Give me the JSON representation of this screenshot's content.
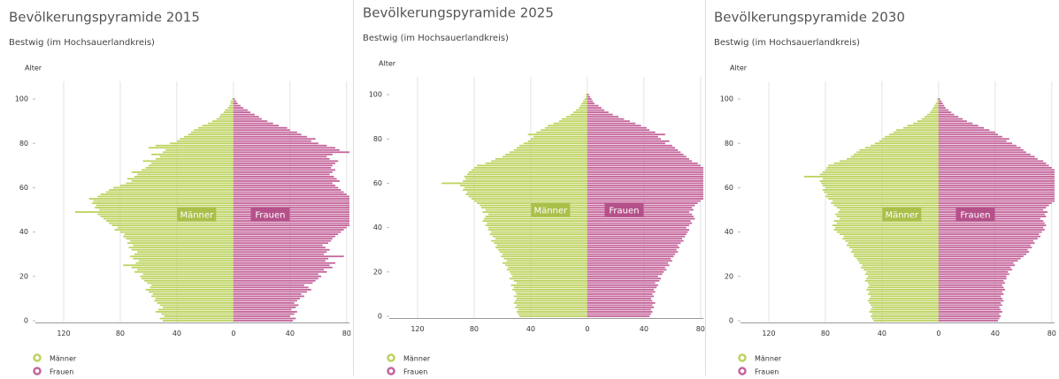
{
  "chart_data": [
    {
      "type": "bar",
      "title": "Bevölkerungspyramide 2015",
      "subtitle": "Bestwig (im Hochsauerlandkreis)",
      "y_label": "Alter",
      "categories": [
        0,
        1,
        2,
        3,
        4,
        5,
        6,
        7,
        8,
        9,
        10,
        11,
        12,
        13,
        14,
        15,
        16,
        17,
        18,
        19,
        20,
        21,
        22,
        23,
        24,
        25,
        26,
        27,
        28,
        29,
        30,
        31,
        32,
        33,
        34,
        35,
        36,
        37,
        38,
        39,
        40,
        41,
        42,
        43,
        44,
        45,
        46,
        47,
        48,
        49,
        50,
        51,
        52,
        53,
        54,
        55,
        56,
        57,
        58,
        59,
        60,
        61,
        62,
        63,
        64,
        65,
        66,
        67,
        68,
        69,
        70,
        71,
        72,
        73,
        74,
        75,
        76,
        77,
        78,
        79,
        80,
        81,
        82,
        83,
        84,
        85,
        86,
        87,
        88,
        89,
        90,
        91,
        92,
        93,
        94,
        95,
        96,
        97,
        98,
        99,
        100
      ],
      "series": [
        {
          "name": "Männer",
          "color": "#bcd35f",
          "values": [
            -50,
            -52,
            -49,
            -51,
            -55,
            -53,
            -50,
            -52,
            -54,
            -56,
            -55,
            -58,
            -57,
            -60,
            -62,
            -59,
            -58,
            -61,
            -63,
            -65,
            -66,
            -64,
            -70,
            -68,
            -72,
            -78,
            -69,
            -67,
            -71,
            -73,
            -70,
            -68,
            -72,
            -74,
            -71,
            -75,
            -73,
            -76,
            -78,
            -77,
            -80,
            -84,
            -82,
            -86,
            -88,
            -90,
            -92,
            -94,
            -96,
            -112,
            -95,
            -98,
            -97,
            -100,
            -99,
            -102,
            -96,
            -94,
            -90,
            -88,
            -85,
            -80,
            -76,
            -72,
            -75,
            -70,
            -68,
            -72,
            -65,
            -62,
            -60,
            -58,
            -64,
            -55,
            -52,
            -58,
            -50,
            -48,
            -60,
            -55,
            -45,
            -40,
            -38,
            -35,
            -32,
            -30,
            -28,
            -25,
            -22,
            -18,
            -15,
            -12,
            -10,
            -9,
            -7,
            -6,
            -4,
            -3,
            -2,
            -2,
            -1
          ]
        },
        {
          "name": "Frauen",
          "color": "#c4649a",
          "values": [
            42,
            44,
            40,
            43,
            45,
            41,
            44,
            46,
            43,
            45,
            47,
            50,
            48,
            52,
            55,
            53,
            50,
            56,
            58,
            60,
            62,
            60,
            66,
            64,
            70,
            68,
            72,
            65,
            67,
            78,
            64,
            66,
            68,
            65,
            63,
            67,
            69,
            70,
            72,
            74,
            76,
            78,
            80,
            82,
            84,
            85,
            83,
            86,
            84,
            85,
            85,
            84,
            86,
            85,
            83,
            84,
            82,
            80,
            78,
            76,
            74,
            72,
            70,
            75,
            73,
            71,
            68,
            70,
            72,
            69,
            70,
            72,
            74,
            68,
            66,
            70,
            84,
            75,
            72,
            66,
            60,
            55,
            58,
            52,
            48,
            45,
            40,
            38,
            32,
            28,
            24,
            20,
            18,
            15,
            12,
            10,
            7,
            5,
            3,
            2,
            1
          ]
        }
      ],
      "xlim": [
        -140,
        82
      ],
      "xticks": [
        {
          "value": -120,
          "label": "120"
        },
        {
          "value": -80,
          "label": "80"
        },
        {
          "value": -40,
          "label": "40"
        },
        0,
        40,
        80
      ],
      "ylim": [
        -1,
        108
      ],
      "yticks": [
        0,
        20,
        40,
        60,
        80,
        100
      ],
      "grid": true
    },
    {
      "type": "bar",
      "title": "Bevölkerungspyramide 2025",
      "subtitle": "Bestwig (im Hochsauerlandkreis)",
      "y_label": "Alter",
      "categories": [
        0,
        1,
        2,
        3,
        4,
        5,
        6,
        7,
        8,
        9,
        10,
        11,
        12,
        13,
        14,
        15,
        16,
        17,
        18,
        19,
        20,
        21,
        22,
        23,
        24,
        25,
        26,
        27,
        28,
        29,
        30,
        31,
        32,
        33,
        34,
        35,
        36,
        37,
        38,
        39,
        40,
        41,
        42,
        43,
        44,
        45,
        46,
        47,
        48,
        49,
        50,
        51,
        52,
        53,
        54,
        55,
        56,
        57,
        58,
        59,
        60,
        61,
        62,
        63,
        64,
        65,
        66,
        67,
        68,
        69,
        70,
        71,
        72,
        73,
        74,
        75,
        76,
        77,
        78,
        79,
        80,
        81,
        82,
        83,
        84,
        85,
        86,
        87,
        88,
        89,
        90,
        91,
        92,
        93,
        94,
        95,
        96,
        97,
        98,
        99,
        100
      ],
      "series": [
        {
          "name": "Männer",
          "color": "#bcd35f",
          "values": [
            -48,
            -49,
            -50,
            -49,
            -51,
            -50,
            -52,
            -51,
            -50,
            -52,
            -50,
            -51,
            -53,
            -52,
            -54,
            -50,
            -52,
            -55,
            -53,
            -54,
            -55,
            -57,
            -56,
            -58,
            -60,
            -57,
            -59,
            -61,
            -60,
            -62,
            -63,
            -65,
            -64,
            -66,
            -68,
            -65,
            -67,
            -69,
            -68,
            -70,
            -70,
            -72,
            -71,
            -74,
            -73,
            -72,
            -70,
            -74,
            -72,
            -75,
            -76,
            -78,
            -80,
            -82,
            -84,
            -86,
            -85,
            -88,
            -87,
            -90,
            -103,
            -88,
            -86,
            -87,
            -85,
            -84,
            -82,
            -80,
            -78,
            -72,
            -68,
            -65,
            -60,
            -58,
            -55,
            -52,
            -50,
            -48,
            -45,
            -42,
            -40,
            -38,
            -42,
            -36,
            -33,
            -30,
            -28,
            -24,
            -20,
            -18,
            -15,
            -12,
            -10,
            -8,
            -6,
            -5,
            -4,
            -3,
            -2,
            -1,
            -1
          ]
        },
        {
          "name": "Frauen",
          "color": "#c4649a",
          "values": [
            44,
            45,
            46,
            45,
            47,
            46,
            48,
            46,
            45,
            47,
            46,
            48,
            47,
            49,
            50,
            48,
            51,
            52,
            50,
            53,
            54,
            56,
            55,
            58,
            57,
            60,
            59,
            61,
            62,
            64,
            63,
            65,
            64,
            66,
            68,
            67,
            69,
            70,
            71,
            72,
            70,
            72,
            74,
            73,
            76,
            75,
            74,
            72,
            75,
            74,
            76,
            78,
            80,
            82,
            84,
            83,
            85,
            84,
            84,
            84,
            84,
            84,
            84,
            84,
            84,
            84,
            84,
            82,
            80,
            78,
            74,
            72,
            70,
            68,
            66,
            64,
            62,
            60,
            55,
            58,
            52,
            50,
            55,
            48,
            44,
            42,
            38,
            34,
            30,
            26,
            22,
            18,
            15,
            12,
            10,
            8,
            5,
            4,
            3,
            2,
            1
          ]
        }
      ],
      "xlim": [
        -140,
        82
      ],
      "xticks": [
        {
          "value": -120,
          "label": "120"
        },
        {
          "value": -80,
          "label": "80"
        },
        {
          "value": -40,
          "label": "40"
        },
        0,
        40,
        80
      ],
      "ylim": [
        -1,
        108
      ],
      "yticks": [
        0,
        20,
        40,
        60,
        80,
        100
      ],
      "grid": true
    },
    {
      "type": "bar",
      "title": "Bevölkerungspyramide 2030",
      "subtitle": "Bestwig (im Hochsauerlandkreis)",
      "y_label": "Alter",
      "categories": [
        0,
        1,
        2,
        3,
        4,
        5,
        6,
        7,
        8,
        9,
        10,
        11,
        12,
        13,
        14,
        15,
        16,
        17,
        18,
        19,
        20,
        21,
        22,
        23,
        24,
        25,
        26,
        27,
        28,
        29,
        30,
        31,
        32,
        33,
        34,
        35,
        36,
        37,
        38,
        39,
        40,
        41,
        42,
        43,
        44,
        45,
        46,
        47,
        48,
        49,
        50,
        51,
        52,
        53,
        54,
        55,
        56,
        57,
        58,
        59,
        60,
        61,
        62,
        63,
        64,
        65,
        66,
        67,
        68,
        69,
        70,
        71,
        72,
        73,
        74,
        75,
        76,
        77,
        78,
        79,
        80,
        81,
        82,
        83,
        84,
        85,
        86,
        87,
        88,
        89,
        90,
        91,
        92,
        93,
        94,
        95,
        96,
        97,
        98,
        99,
        100
      ],
      "series": [
        {
          "name": "Männer",
          "color": "#bcd35f",
          "values": [
            -46,
            -47,
            -48,
            -47,
            -49,
            -48,
            -47,
            -48,
            -49,
            -50,
            -49,
            -48,
            -50,
            -49,
            -51,
            -50,
            -49,
            -50,
            -52,
            -51,
            -50,
            -52,
            -51,
            -53,
            -55,
            -54,
            -56,
            -57,
            -58,
            -60,
            -60,
            -62,
            -61,
            -63,
            -65,
            -64,
            -66,
            -68,
            -67,
            -70,
            -72,
            -74,
            -73,
            -75,
            -72,
            -74,
            -70,
            -72,
            -73,
            -71,
            -70,
            -72,
            -74,
            -76,
            -75,
            -78,
            -80,
            -79,
            -81,
            -82,
            -80,
            -82,
            -83,
            -84,
            -82,
            -95,
            -84,
            -82,
            -80,
            -79,
            -78,
            -74,
            -70,
            -65,
            -62,
            -60,
            -58,
            -56,
            -52,
            -48,
            -45,
            -42,
            -40,
            -38,
            -35,
            -32,
            -30,
            -25,
            -22,
            -18,
            -15,
            -12,
            -10,
            -8,
            -6,
            -5,
            -4,
            -3,
            -2,
            -1,
            -1
          ]
        },
        {
          "name": "Frauen",
          "color": "#c4649a",
          "values": [
            42,
            43,
            44,
            43,
            45,
            44,
            43,
            45,
            44,
            46,
            45,
            44,
            46,
            45,
            47,
            46,
            45,
            47,
            46,
            48,
            48,
            50,
            49,
            52,
            51,
            54,
            53,
            56,
            58,
            60,
            62,
            64,
            63,
            66,
            65,
            68,
            67,
            70,
            72,
            71,
            73,
            75,
            74,
            76,
            75,
            74,
            72,
            76,
            75,
            77,
            74,
            76,
            78,
            80,
            82,
            83,
            84,
            84,
            84,
            84,
            84,
            84,
            84,
            84,
            84,
            84,
            84,
            84,
            82,
            80,
            78,
            76,
            74,
            70,
            68,
            65,
            62,
            60,
            58,
            55,
            52,
            48,
            50,
            45,
            42,
            40,
            36,
            32,
            28,
            24,
            20,
            17,
            14,
            11,
            9,
            7,
            5,
            4,
            3,
            2,
            1
          ]
        }
      ],
      "xlim": [
        -140,
        82
      ],
      "xticks": [
        {
          "value": -120,
          "label": "120"
        },
        {
          "value": -80,
          "label": "80"
        },
        {
          "value": -40,
          "label": "40"
        },
        0,
        40,
        80
      ],
      "ylim": [
        -1,
        108
      ],
      "yticks": [
        0,
        20,
        40,
        60,
        80,
        100
      ],
      "grid": true
    }
  ]
}
